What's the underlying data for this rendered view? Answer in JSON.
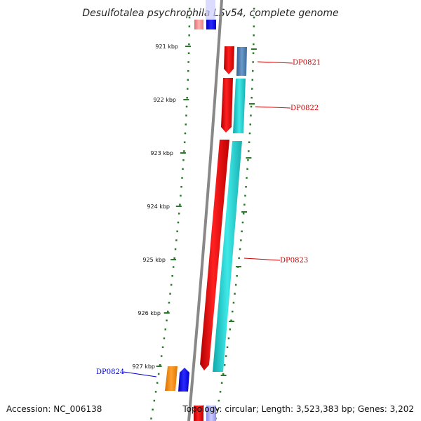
{
  "title": "Desulfotalea psychrophila LSv54, complete genome",
  "footer": {
    "accession": "Accession: NC_006138",
    "topology": "Topology: circular; Length: 3,523,383 bp; Genes: 3,202"
  },
  "ticks": [
    "921 kbp",
    "922 kbp",
    "923 kbp",
    "924 kbp",
    "925 kbp",
    "926 kbp",
    "927 kbp"
  ],
  "genes": [
    {
      "name": "DP0821",
      "color": "#cc0000"
    },
    {
      "name": "DP0822",
      "color": "#cc0000"
    },
    {
      "name": "DP0823",
      "color": "#cc0000"
    },
    {
      "name": "DP0824",
      "color": "#0000cc"
    }
  ],
  "colors": {
    "backbone": "#888888",
    "tick": "#2a7a2a",
    "forward_gene": "#ee0000",
    "forward_feature": "#22cccc",
    "forward_feature_alt": "#4477aa",
    "reverse_gene": "#0000ee",
    "reverse_feature": "#ff8800",
    "neighbor_gene": "#ee8888",
    "neighbor_feature": "#aaaaff"
  }
}
